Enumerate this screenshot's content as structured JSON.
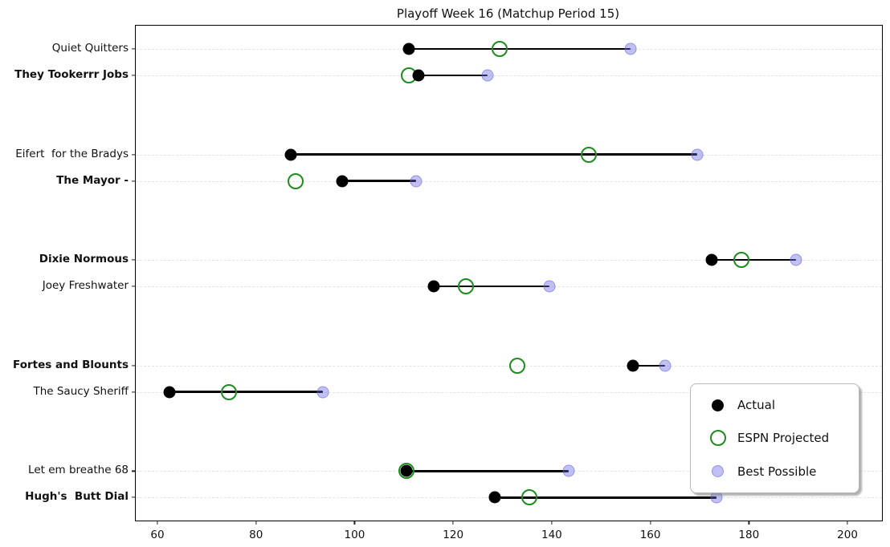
{
  "title": "Playoff Week 16 (Matchup Period 15)",
  "legend": {
    "items": [
      {
        "label": "Actual",
        "marker": "black-filled-circle"
      },
      {
        "label": "ESPN Projected",
        "marker": "green-open-circle"
      },
      {
        "label": "Best Possible",
        "marker": "lavender-filled-circle"
      }
    ]
  },
  "colors": {
    "actual": "#000000",
    "espn_projected": "#1e8c1e",
    "best_possible": "#c9c9f3",
    "gridline": "#e3e3e3"
  },
  "chart_data": {
    "type": "scatter",
    "title": "Playoff Week 16 (Matchup Period 15)",
    "xlabel": "",
    "ylabel": "",
    "xlim": [
      55.6,
      207.0
    ],
    "x_ticks": [
      60,
      80,
      100,
      120,
      140,
      160,
      180,
      200
    ],
    "grid": "horizontal-dashed",
    "legend_position": "lower right",
    "series_names": [
      "Actual",
      "ESPN Projected",
      "Best Possible"
    ],
    "note": "Teams listed top-to-bottom; consecutive pairs are matchups; line connects Actual to Best Possible; bold = winner",
    "teams": [
      {
        "name": "Quiet Quitters",
        "bold": false,
        "matchup": 1,
        "actual": 111.0,
        "espn_projected": 129.5,
        "best_possible": 156.0
      },
      {
        "name": "They Tookerrr Jobs",
        "bold": true,
        "matchup": 1,
        "actual": 113.0,
        "espn_projected": 111.0,
        "best_possible": 127.0
      },
      {
        "name": "Eifert  for the Bradys",
        "bold": false,
        "matchup": 2,
        "actual": 87.0,
        "espn_projected": 147.5,
        "best_possible": 169.5
      },
      {
        "name": "The Mayor -",
        "bold": true,
        "matchup": 2,
        "actual": 97.5,
        "espn_projected": 88.0,
        "best_possible": 112.5
      },
      {
        "name": "Dixie Normous",
        "bold": true,
        "matchup": 3,
        "actual": 172.5,
        "espn_projected": 178.5,
        "best_possible": 189.5
      },
      {
        "name": "Joey Freshwater",
        "bold": false,
        "matchup": 3,
        "actual": 116.0,
        "espn_projected": 122.5,
        "best_possible": 139.5
      },
      {
        "name": "Fortes and Blounts",
        "bold": true,
        "matchup": 4,
        "actual": 156.5,
        "espn_projected": 133.0,
        "best_possible": 163.0
      },
      {
        "name": "The Saucy Sheriff",
        "bold": false,
        "matchup": 4,
        "actual": 62.5,
        "espn_projected": 74.5,
        "best_possible": 93.5
      },
      {
        "name": "Let em breathe 68",
        "bold": false,
        "matchup": 5,
        "actual": 110.5,
        "espn_projected": 110.5,
        "best_possible": 143.5
      },
      {
        "name": "Hugh's  Butt Dial",
        "bold": true,
        "matchup": 5,
        "actual": 128.5,
        "espn_projected": 135.5,
        "best_possible": 173.5
      }
    ]
  }
}
